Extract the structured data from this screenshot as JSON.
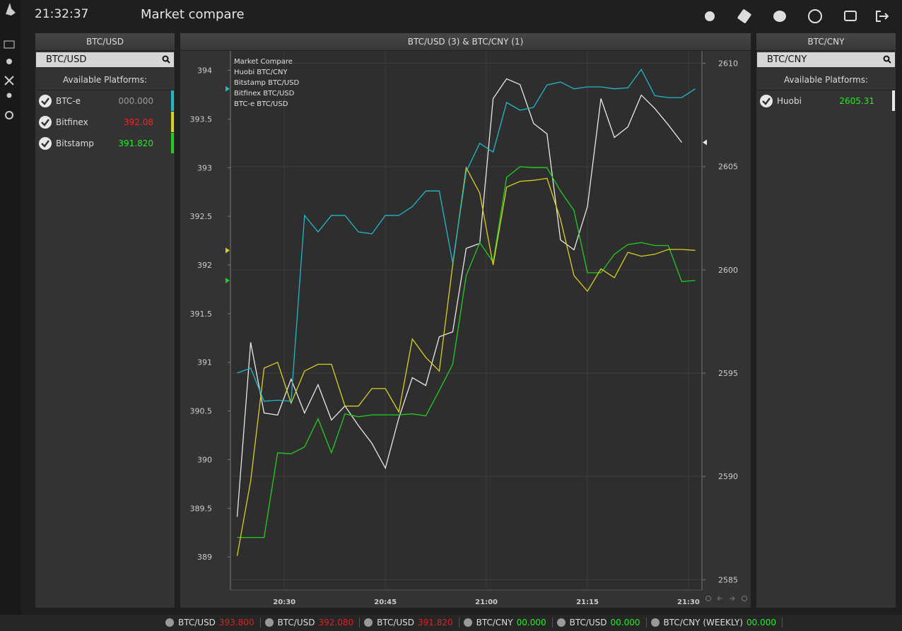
{
  "header": {
    "time": "21:32:37",
    "title": "Market compare"
  },
  "left_panel": {
    "title": "BTC/USD",
    "search": "BTC/USD",
    "subtitle": "Available Platforms:",
    "platforms": [
      {
        "name": "BTC-e",
        "price": "000.000",
        "price_color": "#9a9a9a",
        "bar_color": "#20b8c8"
      },
      {
        "name": "Bitfinex",
        "price": "392.08",
        "price_color": "#ff2020",
        "bar_color": "#d8d020"
      },
      {
        "name": "Bitstamp",
        "price": "391.820",
        "price_color": "#22ee22",
        "bar_color": "#22cc22"
      }
    ]
  },
  "right_panel": {
    "title": "BTC/CNY",
    "search": "BTC/CNY",
    "subtitle": "Available Platforms:",
    "platforms": [
      {
        "name": "Huobi",
        "price": "2605.31",
        "price_color": "#22ee22",
        "bar_color": "#e8e8e8"
      }
    ]
  },
  "chart_panel": {
    "title": "BTC/USD (3) & BTC/CNY (1)"
  },
  "chart_data": {
    "type": "line",
    "title": "Market Compare",
    "x": [
      "20:23",
      "20:25",
      "20:27",
      "20:29",
      "20:31",
      "20:33",
      "20:35",
      "20:37",
      "20:39",
      "20:41",
      "20:43",
      "20:45",
      "20:47",
      "20:49",
      "20:51",
      "20:53",
      "20:55",
      "20:57",
      "20:59",
      "21:01",
      "21:03",
      "21:05",
      "21:07",
      "21:09",
      "21:11",
      "21:13",
      "21:15",
      "21:17",
      "21:19",
      "21:21",
      "21:23",
      "21:25",
      "21:27",
      "21:29",
      "21:31"
    ],
    "xlim": [
      "20:22",
      "21:32"
    ],
    "xticks": [
      "20:30",
      "20:45",
      "21:00",
      "21:15",
      "21:30"
    ],
    "ylim": [
      388.66,
      394.2
    ],
    "yticks": [
      389,
      389.5,
      390,
      390.5,
      391,
      391.5,
      392,
      392.5,
      393,
      393.5,
      394
    ],
    "y2lim": [
      2584.5,
      2610.6
    ],
    "y2ticks": [
      2585,
      2590,
      2595,
      2600,
      2605,
      2610
    ],
    "grid": true,
    "series": [
      {
        "name": "Huobi BTC/CNY",
        "color": "#e8e8e8",
        "axis": "y2",
        "values": [
          2588.04,
          2596.49,
          2593.07,
          2592.97,
          2594.71,
          2593.07,
          2594.44,
          2592.73,
          2593.41,
          2592.46,
          2591.6,
          2590.4,
          2592.83,
          2594.78,
          2594.4,
          2596.76,
          2597.0,
          2601.04,
          2601.28,
          2608.29,
          2609.25,
          2608.97,
          2607.09,
          2606.58,
          2601.45,
          2600.97,
          2603.06,
          2608.29,
          2606.41,
          2606.92,
          2608.46,
          2607.81,
          2607.02,
          2606.17,
          null
        ]
      },
      {
        "name": "Bitstamp BTC/USD",
        "color": "#22cc22",
        "values": [
          389.2,
          389.2,
          389.2,
          390.07,
          390.06,
          390.13,
          390.42,
          390.07,
          390.47,
          390.44,
          390.46,
          390.46,
          390.46,
          390.47,
          390.45,
          390.71,
          390.98,
          391.89,
          392.23,
          392.03,
          392.9,
          393.01,
          393.0,
          393.0,
          392.76,
          392.56,
          391.92,
          391.92,
          392.11,
          392.21,
          392.23,
          392.2,
          392.2,
          391.83,
          391.84
        ]
      },
      {
        "name": "Bitfinex BTC/USD",
        "color": "#d8d020",
        "values": [
          389.01,
          389.78,
          390.94,
          391.0,
          390.58,
          390.91,
          390.98,
          390.98,
          390.55,
          390.55,
          390.73,
          390.73,
          390.49,
          391.24,
          391.05,
          390.91,
          392.0,
          393.0,
          392.74,
          392.0,
          392.8,
          392.86,
          392.87,
          392.89,
          392.47,
          391.89,
          391.73,
          391.96,
          391.87,
          392.13,
          392.09,
          392.11,
          392.16,
          392.16,
          392.15
        ]
      },
      {
        "name": "BTC-e BTC/USD",
        "color": "#20b8c8",
        "values": [
          390.89,
          390.94,
          390.6,
          390.61,
          390.6,
          392.51,
          392.34,
          392.51,
          392.51,
          392.34,
          392.32,
          392.51,
          392.51,
          392.6,
          392.76,
          392.76,
          392.02,
          392.96,
          393.25,
          393.16,
          393.67,
          393.59,
          393.62,
          393.85,
          393.88,
          393.81,
          393.83,
          393.83,
          393.81,
          393.82,
          394.01,
          393.74,
          393.72,
          393.72,
          393.81
        ]
      }
    ]
  },
  "ticker": [
    {
      "pair": "BTC/USD",
      "price": "393.800",
      "color": "#e02020"
    },
    {
      "pair": "BTC/USD",
      "price": "392.080",
      "color": "#e02020"
    },
    {
      "pair": "BTC/USD",
      "price": "391.820",
      "color": "#e02020"
    },
    {
      "pair": "BTC/CNY",
      "price": "00.000",
      "color": "#22ee22"
    },
    {
      "pair": "BTC/USD",
      "price": "00.000",
      "color": "#22ee22"
    },
    {
      "pair": "BTC/CNY (WEEKLY)",
      "price": "00.000",
      "color": "#22ee22"
    }
  ]
}
